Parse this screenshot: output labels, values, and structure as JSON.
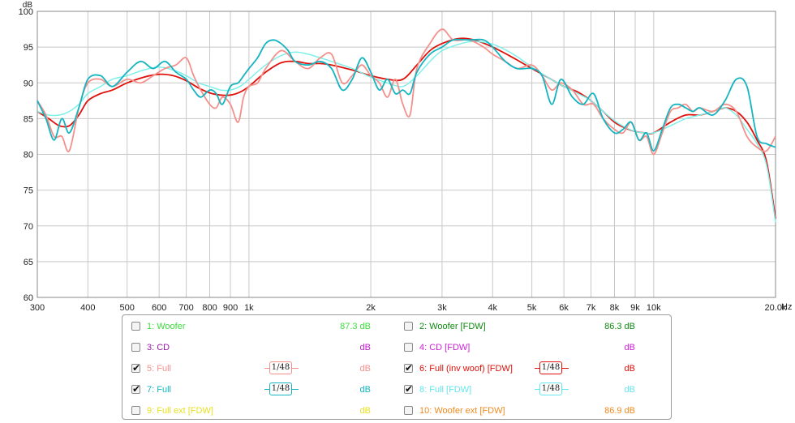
{
  "chart_data": {
    "type": "line",
    "title": "",
    "xlabel": "Hz",
    "ylabel": "dB",
    "xscale": "log",
    "xlim": [
      300,
      20000
    ],
    "ylim": [
      60,
      100
    ],
    "grid": true,
    "y_ticks": [
      60,
      65,
      70,
      75,
      80,
      85,
      90,
      95,
      100
    ],
    "x_ticks": [
      300,
      400,
      500,
      600,
      700,
      800,
      900,
      1000,
      2000,
      3000,
      4000,
      5000,
      6000,
      7000,
      8000,
      9000,
      10000,
      20000
    ],
    "x_tick_labels": [
      "300",
      "400",
      "500",
      "600",
      "700",
      "800",
      "900",
      "1k",
      "2k",
      "3k",
      "4k",
      "5k",
      "6k",
      "7k",
      "8k",
      "9k",
      "10k",
      "20.0k"
    ],
    "series": [
      {
        "name": "5: Full",
        "color": "#f4908c",
        "x": [
          300,
          315,
          330,
          345,
          360,
          380,
          400,
          430,
          460,
          500,
          540,
          580,
          620,
          660,
          700,
          730,
          760,
          800,
          830,
          860,
          900,
          940,
          970,
          1000,
          1050,
          1100,
          1200,
          1300,
          1400,
          1500,
          1600,
          1700,
          1800,
          1900,
          2000,
          2100,
          2200,
          2300,
          2400,
          2500,
          2600,
          2800,
          3000,
          3200,
          3500,
          3800,
          4000,
          4300,
          4600,
          5000,
          5300,
          5600,
          5900,
          6300,
          6700,
          7100,
          7500,
          8000,
          8400,
          8800,
          9200,
          9600,
          10000,
          10500,
          11000,
          11500,
          12000,
          12500,
          13000,
          14000,
          15000,
          16000,
          17000,
          18000,
          19000,
          20000
        ],
        "y": [
          87.5,
          85.5,
          82.5,
          82.5,
          80.5,
          86.5,
          90.0,
          90.5,
          89.5,
          90.5,
          90.0,
          91.0,
          92.0,
          92.5,
          93.5,
          91.0,
          89.0,
          87.0,
          86.5,
          88.0,
          87.0,
          84.5,
          88.0,
          89.5,
          90.0,
          92.0,
          94.5,
          93.0,
          92.0,
          93.5,
          94.0,
          90.0,
          91.0,
          92.5,
          91.0,
          90.0,
          88.0,
          90.5,
          87.0,
          85.5,
          92.0,
          95.5,
          97.5,
          96.0,
          96.0,
          95.0,
          94.0,
          93.0,
          92.0,
          92.5,
          91.0,
          89.0,
          90.0,
          89.0,
          87.0,
          87.0,
          85.0,
          83.5,
          83.0,
          84.5,
          82.0,
          82.5,
          80.0,
          83.0,
          86.0,
          86.5,
          87.0,
          86.0,
          86.5,
          86.0,
          87.0,
          86.0,
          82.5,
          81.0,
          80.5,
          82.5
        ]
      },
      {
        "name": "7: Full",
        "color": "#14b4c0",
        "x": [
          300,
          315,
          330,
          345,
          360,
          380,
          400,
          430,
          460,
          500,
          540,
          580,
          620,
          660,
          700,
          730,
          760,
          800,
          830,
          860,
          900,
          940,
          970,
          1000,
          1050,
          1100,
          1150,
          1200,
          1250,
          1300,
          1400,
          1500,
          1600,
          1700,
          1800,
          1900,
          2000,
          2100,
          2200,
          2300,
          2400,
          2500,
          2600,
          2800,
          3000,
          3200,
          3500,
          3800,
          4000,
          4300,
          4600,
          5000,
          5300,
          5600,
          5900,
          6300,
          6700,
          7100,
          7500,
          8000,
          8400,
          8800,
          9200,
          9600,
          10000,
          10500,
          11000,
          11500,
          12000,
          12500,
          13000,
          14000,
          15000,
          16000,
          17000,
          18000,
          19000,
          20000
        ],
        "y": [
          87.5,
          85.0,
          82.0,
          85.0,
          83.0,
          86.5,
          90.5,
          91.0,
          89.5,
          91.5,
          93.0,
          92.0,
          93.0,
          91.5,
          90.5,
          89.0,
          88.0,
          89.0,
          88.5,
          87.0,
          89.5,
          90.0,
          91.0,
          92.0,
          93.5,
          95.5,
          96.0,
          95.5,
          94.5,
          93.0,
          92.5,
          93.0,
          92.0,
          89.0,
          90.5,
          93.5,
          91.5,
          89.0,
          90.5,
          88.5,
          89.0,
          88.5,
          91.5,
          94.0,
          95.0,
          96.0,
          96.0,
          96.0,
          95.0,
          93.0,
          92.0,
          92.0,
          91.0,
          87.0,
          90.5,
          88.0,
          87.0,
          88.5,
          85.0,
          83.0,
          83.5,
          84.5,
          82.0,
          83.0,
          80.5,
          83.5,
          86.5,
          87.0,
          86.5,
          86.0,
          86.5,
          85.5,
          87.5,
          90.5,
          89.5,
          82.5,
          81.5,
          81.0
        ]
      },
      {
        "name": "6: Full (inv woof) [FDW]",
        "color": "#e0100a",
        "x": [
          300,
          320,
          340,
          360,
          380,
          400,
          430,
          460,
          500,
          550,
          600,
          650,
          700,
          750,
          800,
          850,
          900,
          950,
          1000,
          1100,
          1200,
          1300,
          1400,
          1500,
          1600,
          1800,
          2000,
          2200,
          2400,
          2600,
          2800,
          3000,
          3300,
          3600,
          4000,
          4500,
          5000,
          5500,
          6000,
          6500,
          7000,
          7500,
          8000,
          8500,
          9000,
          9500,
          10000,
          11000,
          12000,
          13000,
          14000,
          15000,
          16000,
          17000,
          18000,
          19000,
          20000
        ],
        "y": [
          86.0,
          85.0,
          84.0,
          84.0,
          85.5,
          87.5,
          88.5,
          89.0,
          90.0,
          90.8,
          91.2,
          91.0,
          90.3,
          89.3,
          88.6,
          88.3,
          88.3,
          88.7,
          89.5,
          91.5,
          92.8,
          93.0,
          92.7,
          92.7,
          92.5,
          91.8,
          91.0,
          90.5,
          90.5,
          92.5,
          94.5,
          95.5,
          96.2,
          96.0,
          95.0,
          93.5,
          92.0,
          90.7,
          89.5,
          88.7,
          87.5,
          86.0,
          84.5,
          83.7,
          83.2,
          83.0,
          83.0,
          84.5,
          85.5,
          85.5,
          86.0,
          86.5,
          86.0,
          84.5,
          82.0,
          79.0,
          71.0
        ]
      },
      {
        "name": "8: Full [FDW]",
        "color": "#7ef0ea",
        "x": [
          300,
          320,
          340,
          360,
          380,
          400,
          430,
          460,
          500,
          550,
          600,
          650,
          700,
          750,
          800,
          850,
          900,
          950,
          1000,
          1100,
          1200,
          1300,
          1400,
          1500,
          1600,
          1800,
          2000,
          2200,
          2400,
          2600,
          2800,
          3000,
          3300,
          3600,
          4000,
          4500,
          5000,
          5500,
          6000,
          6500,
          7000,
          7500,
          8000,
          8500,
          9000,
          9500,
          10000,
          11000,
          12000,
          13000,
          14000,
          15000,
          16000,
          17000,
          18000,
          19000,
          20000
        ],
        "y": [
          86.0,
          85.5,
          85.5,
          86.0,
          87.0,
          88.5,
          89.5,
          90.5,
          91.0,
          91.8,
          92.2,
          91.8,
          91.0,
          90.0,
          89.5,
          89.0,
          89.0,
          89.5,
          90.5,
          92.5,
          93.8,
          94.3,
          94.0,
          93.5,
          93.0,
          92.0,
          90.8,
          90.0,
          89.5,
          91.0,
          93.0,
          94.5,
          95.4,
          95.8,
          95.4,
          94.0,
          92.2,
          90.7,
          89.5,
          88.5,
          87.5,
          86.0,
          84.7,
          83.8,
          83.2,
          83.0,
          83.0,
          84.0,
          85.0,
          85.5,
          86.0,
          86.5,
          85.5,
          83.5,
          81.5,
          78.5,
          70.5
        ]
      }
    ],
    "legend_placement": "bottom"
  },
  "legend": {
    "items": [
      {
        "label": "1: Woofer",
        "value": "87.3 dB",
        "checked": false,
        "color": "#3ddc3d",
        "value_color": "#3ddc3d",
        "smoothing": ""
      },
      {
        "label": "2: Woofer [FDW]",
        "value": "86.3 dB",
        "checked": false,
        "color": "#118811",
        "value_color": "#118811",
        "smoothing": ""
      },
      {
        "label": "3: CD",
        "value": "dB",
        "checked": false,
        "color": "#9b18a8",
        "value_color": "#c01ccc",
        "smoothing": ""
      },
      {
        "label": "4: CD [FDW]",
        "value": "dB",
        "checked": false,
        "color": "#d020d8",
        "value_color": "#d020d8",
        "smoothing": ""
      },
      {
        "label": "5: Full",
        "value": "dB",
        "checked": true,
        "color": "#f4908c",
        "value_color": "#f4908c",
        "smoothing": "1/48"
      },
      {
        "label": "6: Full (inv woof) [FDW]",
        "value": "dB",
        "checked": true,
        "color": "#e0100a",
        "value_color": "#e0100a",
        "smoothing": "1/48"
      },
      {
        "label": "7: Full",
        "value": "dB",
        "checked": true,
        "color": "#14b4c0",
        "value_color": "#14b4c0",
        "smoothing": "1/48"
      },
      {
        "label": "8: Full [FDW]",
        "value": "dB",
        "checked": true,
        "color": "#66e6ee",
        "value_color": "#66e6ee",
        "smoothing": "1/48"
      },
      {
        "label": "9: Full ext [FDW]",
        "value": "dB",
        "checked": false,
        "color": "#e8e020",
        "value_color": "#e8e020",
        "smoothing": ""
      },
      {
        "label": "10: Woofer ext [FDW]",
        "value": "86.9 dB",
        "checked": false,
        "color": "#f08a20",
        "value_color": "#f08a20",
        "smoothing": ""
      }
    ]
  }
}
